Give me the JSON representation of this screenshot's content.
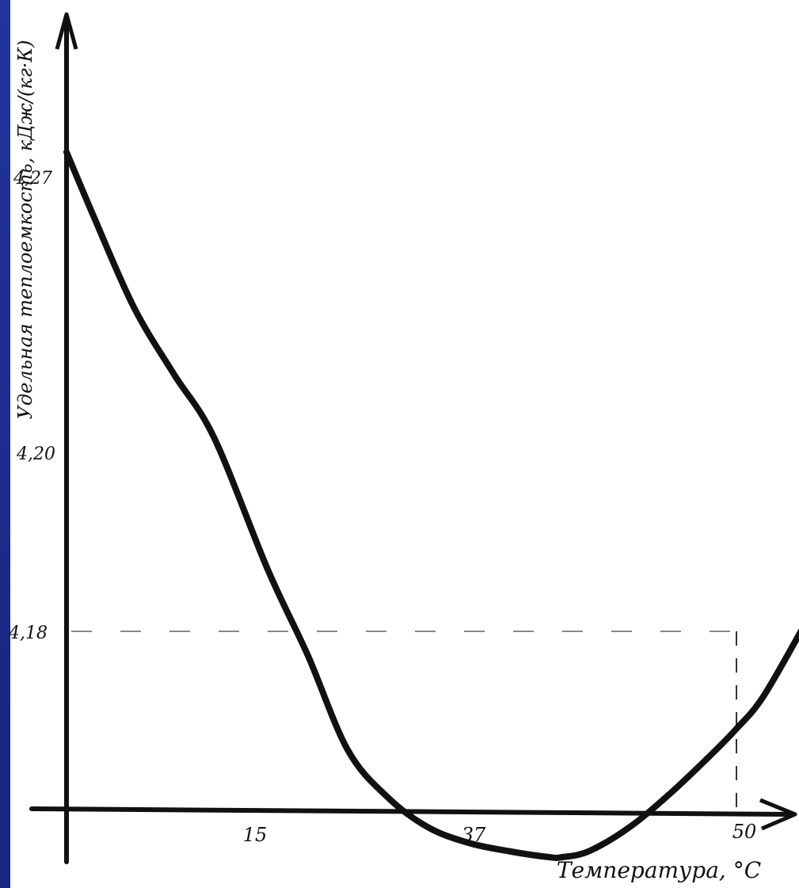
{
  "chart_data": {
    "type": "line",
    "title": "",
    "xlabel": "Температура, °С",
    "ylabel": "Удельная теплоемкость, кДж/(кг·К)",
    "x_ticks": [
      "15",
      "37",
      "50"
    ],
    "y_ticks": [
      "4,27",
      "4,20",
      "4,18"
    ],
    "series": [
      {
        "x": [
          0,
          2,
          5,
          8,
          11,
          15,
          18,
          21,
          24,
          27,
          30,
          33,
          36,
          37,
          39,
          42,
          45,
          48,
          50,
          52,
          55
        ],
        "y": [
          4.276,
          4.26,
          4.237,
          4.22,
          4.204,
          4.187,
          4.178,
          4.17,
          4.166,
          4.1635,
          4.1622,
          4.1615,
          4.161,
          4.161,
          4.1615,
          4.1635,
          4.1663,
          4.1695,
          4.1718,
          4.1745,
          4.1805
        ]
      }
    ],
    "guides": [
      {
        "from": "y-axis",
        "y": 4.18,
        "to_x": 50
      },
      {
        "from": "x-axis",
        "x": 50,
        "to_y": 4.18
      }
    ],
    "grid": false,
    "legend": "none"
  }
}
